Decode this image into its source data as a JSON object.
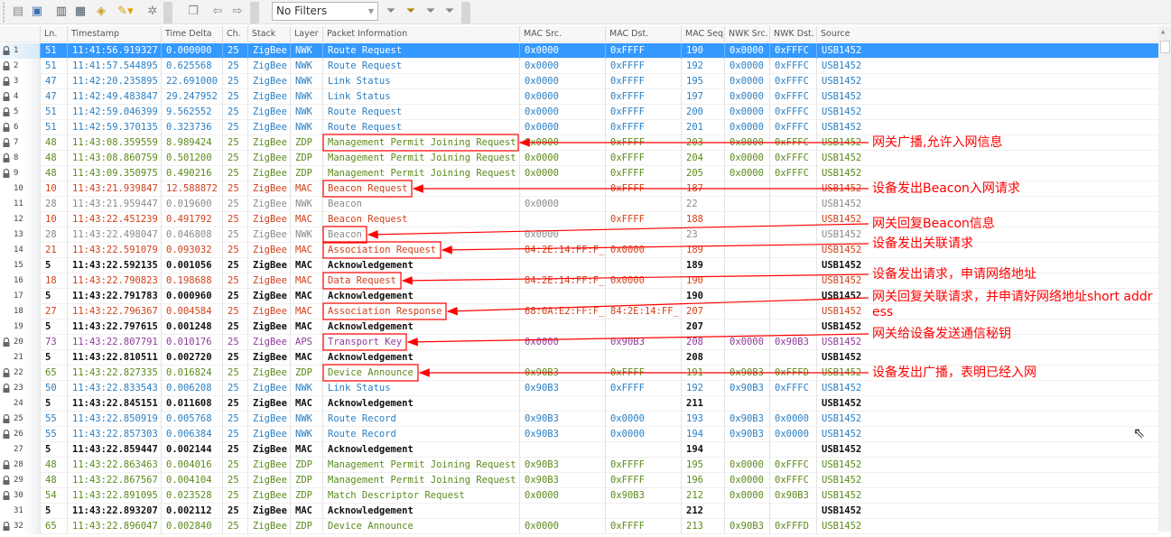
{
  "toolbar": {
    "filter_value": "No Filters",
    "icons": [
      "new-icon",
      "save-icon",
      "columns-icon",
      "display-icon",
      "refresh-icon",
      "clear-icon",
      "settings-icon",
      "copy-icon",
      "back-icon",
      "forward-icon",
      "filter-icon",
      "filter-edit-icon",
      "filter-add-icon",
      "filter-remove-icon"
    ]
  },
  "columns": [
    "Ln.",
    "Timestamp",
    "Time Delta",
    "Ch.",
    "Stack",
    "Layer",
    "Packet Information",
    "MAC Src.",
    "MAC Dst.",
    "MAC Seq.",
    "NWK Src.",
    "NWK Dst.",
    "Source"
  ],
  "colors": {
    "nwk": "#2a7fc4",
    "zdp": "#5b8a1a",
    "mac_red": "#d2401a",
    "beacon": "#8a8a8a",
    "ack": "#111111",
    "aps": "#8e3b9b",
    "selected": "#3399ff",
    "annotation": "#ff0000"
  },
  "rows": [
    [
      "1",
      true,
      "51",
      "11:41:56.919327",
      "0.000000",
      "25",
      "ZigBee",
      "NWK",
      "Route Request",
      "0x0000",
      "0xFFFF",
      "190",
      "0x0000",
      "0xFFFC",
      "USB1452",
      "nwk"
    ],
    [
      "2",
      true,
      "51",
      "11:41:57.544895",
      "0.625568",
      "25",
      "ZigBee",
      "NWK",
      "Route Request",
      "0x0000",
      "0xFFFF",
      "192",
      "0x0000",
      "0xFFFC",
      "USB1452",
      "nwk"
    ],
    [
      "3",
      true,
      "47",
      "11:42:20.235895",
      "22.691000",
      "25",
      "ZigBee",
      "NWK",
      "Link Status",
      "0x0000",
      "0xFFFF",
      "195",
      "0x0000",
      "0xFFFC",
      "USB1452",
      "nwk"
    ],
    [
      "4",
      true,
      "47",
      "11:42:49.483847",
      "29.247952",
      "25",
      "ZigBee",
      "NWK",
      "Link Status",
      "0x0000",
      "0xFFFF",
      "197",
      "0x0000",
      "0xFFFC",
      "USB1452",
      "nwk"
    ],
    [
      "5",
      true,
      "51",
      "11:42:59.046399",
      "9.562552",
      "25",
      "ZigBee",
      "NWK",
      "Route Request",
      "0x0000",
      "0xFFFF",
      "200",
      "0x0000",
      "0xFFFC",
      "USB1452",
      "nwk"
    ],
    [
      "6",
      true,
      "51",
      "11:42:59.370135",
      "0.323736",
      "25",
      "ZigBee",
      "NWK",
      "Route Request",
      "0x0000",
      "0xFFFF",
      "201",
      "0x0000",
      "0xFFFC",
      "USB1452",
      "nwk"
    ],
    [
      "7",
      true,
      "48",
      "11:43:08.359559",
      "8.989424",
      "25",
      "ZigBee",
      "ZDP",
      "Management Permit Joining Request",
      "0x0000",
      "0xFFFF",
      "203",
      "0x0000",
      "0xFFFC",
      "USB1452",
      "zdp"
    ],
    [
      "8",
      true,
      "48",
      "11:43:08.860759",
      "0.501200",
      "25",
      "ZigBee",
      "ZDP",
      "Management Permit Joining Request",
      "0x0000",
      "0xFFFF",
      "204",
      "0x0000",
      "0xFFFC",
      "USB1452",
      "zdp"
    ],
    [
      "9",
      true,
      "48",
      "11:43:09.350975",
      "0.490216",
      "25",
      "ZigBee",
      "ZDP",
      "Management Permit Joining Request",
      "0x0000",
      "0xFFFF",
      "205",
      "0x0000",
      "0xFFFC",
      "USB1452",
      "zdp"
    ],
    [
      "10",
      false,
      "10",
      "11:43:21.939847",
      "12.588872",
      "25",
      "ZigBee",
      "MAC",
      "Beacon Request",
      "",
      "0xFFFF",
      "187",
      "",
      "",
      "USB1452",
      "mac_red"
    ],
    [
      "11",
      false,
      "28",
      "11:43:21.959447",
      "0.019600",
      "25",
      "ZigBee",
      "NWK",
      "Beacon",
      "0x0000",
      "",
      "22",
      "",
      "",
      "USB1452",
      "beacon"
    ],
    [
      "12",
      false,
      "10",
      "11:43:22.451239",
      "0.491792",
      "25",
      "ZigBee",
      "MAC",
      "Beacon Request",
      "",
      "0xFFFF",
      "188",
      "",
      "",
      "USB1452",
      "mac_red"
    ],
    [
      "13",
      false,
      "28",
      "11:43:22.498047",
      "0.046808",
      "25",
      "ZigBee",
      "NWK",
      "Beacon",
      "0x0000",
      "",
      "23",
      "",
      "",
      "USB1452",
      "beacon"
    ],
    [
      "14",
      false,
      "21",
      "11:43:22.591079",
      "0.093032",
      "25",
      "ZigBee",
      "MAC",
      "Association Request",
      "84:2E:14:FF:F_",
      "0x0000",
      "189",
      "",
      "",
      "USB1452",
      "mac_red"
    ],
    [
      "15",
      false,
      "5",
      "11:43:22.592135",
      "0.001056",
      "25",
      "ZigBee",
      "MAC",
      "Acknowledgement",
      "",
      "",
      "189",
      "",
      "",
      "USB1452",
      "ack"
    ],
    [
      "16",
      false,
      "18",
      "11:43:22.790823",
      "0.198688",
      "25",
      "ZigBee",
      "MAC",
      "Data Request",
      "84:2E:14:FF:F_",
      "0x0000",
      "190",
      "",
      "",
      "USB1452",
      "mac_red"
    ],
    [
      "17",
      false,
      "5",
      "11:43:22.791783",
      "0.000960",
      "25",
      "ZigBee",
      "MAC",
      "Acknowledgement",
      "",
      "",
      "190",
      "",
      "",
      "USB1452",
      "ack"
    ],
    [
      "18",
      false,
      "27",
      "11:43:22.796367",
      "0.004584",
      "25",
      "ZigBee",
      "MAC",
      "Association Response",
      "68:0A:E2:FF:F_",
      "84:2E:14:FF_",
      "207",
      "",
      "",
      "USB1452",
      "mac_red"
    ],
    [
      "19",
      false,
      "5",
      "11:43:22.797615",
      "0.001248",
      "25",
      "ZigBee",
      "MAC",
      "Acknowledgement",
      "",
      "",
      "207",
      "",
      "",
      "USB1452",
      "ack"
    ],
    [
      "20",
      true,
      "73",
      "11:43:22.807791",
      "0.010176",
      "25",
      "ZigBee",
      "APS",
      "Transport Key",
      "0x0000",
      "0x90B3",
      "208",
      "0x0000",
      "0x90B3",
      "USB1452",
      "aps"
    ],
    [
      "21",
      false,
      "5",
      "11:43:22.810511",
      "0.002720",
      "25",
      "ZigBee",
      "MAC",
      "Acknowledgement",
      "",
      "",
      "208",
      "",
      "",
      "USB1452",
      "ack"
    ],
    [
      "22",
      true,
      "65",
      "11:43:22.827335",
      "0.016824",
      "25",
      "ZigBee",
      "ZDP",
      "Device Announce",
      "0x90B3",
      "0xFFFF",
      "191",
      "0x90B3",
      "0xFFFD",
      "USB1452",
      "zdp"
    ],
    [
      "23",
      true,
      "50",
      "11:43:22.833543",
      "0.006208",
      "25",
      "ZigBee",
      "NWK",
      "Link Status",
      "0x90B3",
      "0xFFFF",
      "192",
      "0x90B3",
      "0xFFFC",
      "USB1452",
      "nwk"
    ],
    [
      "24",
      false,
      "5",
      "11:43:22.845151",
      "0.011608",
      "25",
      "ZigBee",
      "MAC",
      "Acknowledgement",
      "",
      "",
      "211",
      "",
      "",
      "USB1452",
      "ack"
    ],
    [
      "25",
      true,
      "55",
      "11:43:22.850919",
      "0.005768",
      "25",
      "ZigBee",
      "NWK",
      "Route Record",
      "0x90B3",
      "0x0000",
      "193",
      "0x90B3",
      "0x0000",
      "USB1452",
      "nwk"
    ],
    [
      "26",
      true,
      "55",
      "11:43:22.857303",
      "0.006384",
      "25",
      "ZigBee",
      "NWK",
      "Route Record",
      "0x90B3",
      "0x0000",
      "194",
      "0x90B3",
      "0x0000",
      "USB1452",
      "nwk"
    ],
    [
      "27",
      false,
      "5",
      "11:43:22.859447",
      "0.002144",
      "25",
      "ZigBee",
      "MAC",
      "Acknowledgement",
      "",
      "",
      "194",
      "",
      "",
      "USB1452",
      "ack"
    ],
    [
      "28",
      true,
      "48",
      "11:43:22.863463",
      "0.004016",
      "25",
      "ZigBee",
      "ZDP",
      "Management Permit Joining Request",
      "0x90B3",
      "0xFFFF",
      "195",
      "0x0000",
      "0xFFFC",
      "USB1452",
      "zdp"
    ],
    [
      "29",
      true,
      "48",
      "11:43:22.867567",
      "0.004104",
      "25",
      "ZigBee",
      "ZDP",
      "Management Permit Joining Request",
      "0x90B3",
      "0xFFFF",
      "196",
      "0x0000",
      "0xFFFC",
      "USB1452",
      "zdp"
    ],
    [
      "30",
      true,
      "54",
      "11:43:22.891095",
      "0.023528",
      "25",
      "ZigBee",
      "ZDP",
      "Match Descriptor Request",
      "0x0000",
      "0x90B3",
      "212",
      "0x0000",
      "0x90B3",
      "USB1452",
      "zdp"
    ],
    [
      "31",
      false,
      "5",
      "11:43:22.893207",
      "0.002112",
      "25",
      "ZigBee",
      "MAC",
      "Acknowledgement",
      "",
      "",
      "212",
      "",
      "",
      "USB1452",
      "ack"
    ],
    [
      "32",
      true,
      "65",
      "11:43:22.896047",
      "0.002840",
      "25",
      "ZigBee",
      "ZDP",
      "Device Announce",
      "0x0000",
      "0xFFFF",
      "213",
      "0x90B3",
      "0xFFFD",
      "USB1452",
      "zdp"
    ]
  ],
  "selected_row": "1",
  "annotations": [
    "网关广播,允许入网信息",
    "设备发出Beacon入网请求",
    "网关回复Beacon信息",
    "设备发出关联请求",
    "设备发出请求，申请网络地址",
    "网关回复关联请求，并申请好网络地址short address",
    "网关给设备发送通信秘钥",
    "设备发出广播，表明已经入网"
  ]
}
